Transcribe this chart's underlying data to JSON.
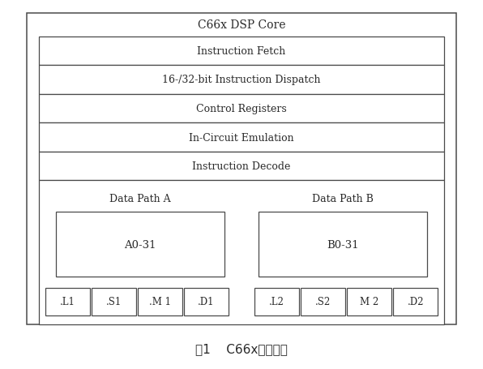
{
  "title": "C66x DSP Core",
  "caption_part1": "图1    C66x内核构架",
  "instruction_boxes": [
    "Instruction Fetch",
    "16-/32-bit Instruction Dispatch",
    "Control Registers",
    "In-Circuit Emulation",
    "Instruction Decode"
  ],
  "data_path_a_label": "Data Path A",
  "data_path_b_label": "Data Path B",
  "reg_a_label": "A0-31",
  "reg_b_label": "B0-31",
  "func_units_a": [
    ".L1",
    ".S1",
    ".M 1",
    ".D1"
  ],
  "func_units_b": [
    ".L2",
    ".S2",
    "M 2",
    ".D2"
  ],
  "bg_color": "#ffffff",
  "box_edge_color": "#4a4a4a",
  "text_color": "#2a2a2a",
  "fig_w": 5.96,
  "fig_h": 4.56,
  "dpi": 100
}
